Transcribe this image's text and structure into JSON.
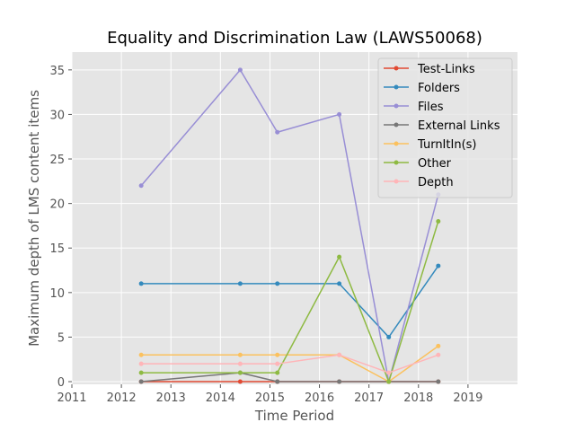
{
  "chart_data": {
    "type": "line",
    "title": "Equality and Discrimination Law (LAWS50068)",
    "xlabel": "Time Period",
    "ylabel": "Maximum depth of LMS content items",
    "x": [
      2012.4,
      2014.4,
      2015.15,
      2016.4,
      2017.4,
      2018.4
    ],
    "xlim": [
      2011,
      2020
    ],
    "ylim": [
      -0.3,
      37
    ],
    "xticks": [
      2011,
      2012,
      2013,
      2014,
      2015,
      2016,
      2017,
      2018,
      2019
    ],
    "xtick_labels": [
      "2011",
      "2012",
      "2013",
      "2014",
      "2015",
      "2016",
      "2017",
      "2018",
      "2019"
    ],
    "yticks": [
      0,
      5,
      10,
      15,
      20,
      25,
      30,
      35
    ],
    "ytick_labels": [
      "0",
      "5",
      "10",
      "15",
      "20",
      "25",
      "30",
      "35"
    ],
    "grid": true,
    "legend_position": "top-right",
    "series": [
      {
        "name": "Test-Links",
        "color": "#e24a33",
        "values": [
          0,
          0,
          0,
          0,
          0,
          0
        ]
      },
      {
        "name": "Folders",
        "color": "#348abd",
        "values": [
          11,
          11,
          11,
          11,
          5,
          13
        ]
      },
      {
        "name": "Files",
        "color": "#988ed5",
        "values": [
          22,
          35,
          28,
          30,
          0,
          21
        ]
      },
      {
        "name": "External Links",
        "color": "#777777",
        "values": [
          0,
          1,
          0,
          0,
          0,
          0
        ]
      },
      {
        "name": "TurnItIn(s)",
        "color": "#fbc15e",
        "values": [
          3,
          3,
          3,
          3,
          0,
          4
        ]
      },
      {
        "name": "Other",
        "color": "#8eba42",
        "values": [
          1,
          1,
          1,
          14,
          0,
          18
        ]
      },
      {
        "name": "Depth",
        "color": "#ffb5b8",
        "values": [
          2,
          2,
          2,
          3,
          1,
          3
        ]
      }
    ]
  }
}
